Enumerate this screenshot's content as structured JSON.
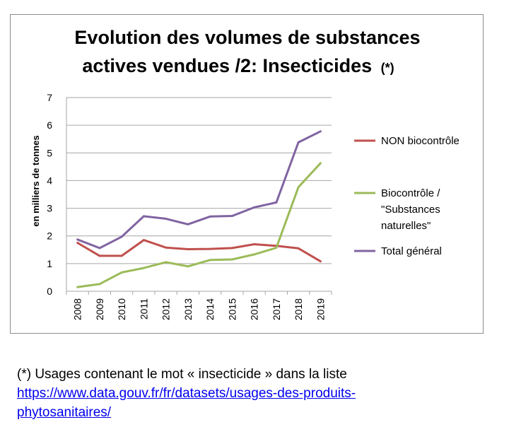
{
  "chart_data": {
    "type": "line",
    "title_line1": "Evolution des volumes de substances",
    "title_line2": "actives vendues /2: Insecticides",
    "title_note": "(*)",
    "ylabel": "en milliers de tonnes",
    "xlabel": "",
    "ylim": [
      0,
      7
    ],
    "y_ticks": [
      "0",
      "1",
      "2",
      "3",
      "4",
      "5",
      "6",
      "7"
    ],
    "categories": [
      "2008",
      "2009",
      "2010",
      "2011",
      "2012",
      "2013",
      "2014",
      "2015",
      "2016",
      "2017",
      "2018",
      "2019"
    ],
    "grid": "horizontal",
    "legend_position": "right",
    "series": [
      {
        "name": "NON biocontrôle",
        "color": "#c0504d",
        "values": [
          1.75,
          1.28,
          1.28,
          1.85,
          1.58,
          1.52,
          1.53,
          1.56,
          1.7,
          1.64,
          1.55,
          1.08
        ]
      },
      {
        "name": "Biocontrôle / \"Substances naturelles\"",
        "color": "#9bbb59",
        "legend_lines": [
          "Biocontrôle /",
          "\"Substances",
          "naturelles\""
        ],
        "values": [
          0.15,
          0.26,
          0.68,
          0.84,
          1.05,
          0.9,
          1.13,
          1.15,
          1.33,
          1.57,
          3.76,
          4.63
        ]
      },
      {
        "name": "Total général",
        "color": "#8064a2",
        "values": [
          1.87,
          1.56,
          1.97,
          2.71,
          2.62,
          2.42,
          2.7,
          2.72,
          3.03,
          3.21,
          5.38,
          5.78
        ]
      }
    ]
  },
  "footnote": {
    "text": "(*) Usages contenant le mot « insecticide » dans la liste",
    "link_line1": "https://www.data.gouv.fr/fr/datasets/usages-des-produits-",
    "link_line2": "phytosanitaires/"
  }
}
